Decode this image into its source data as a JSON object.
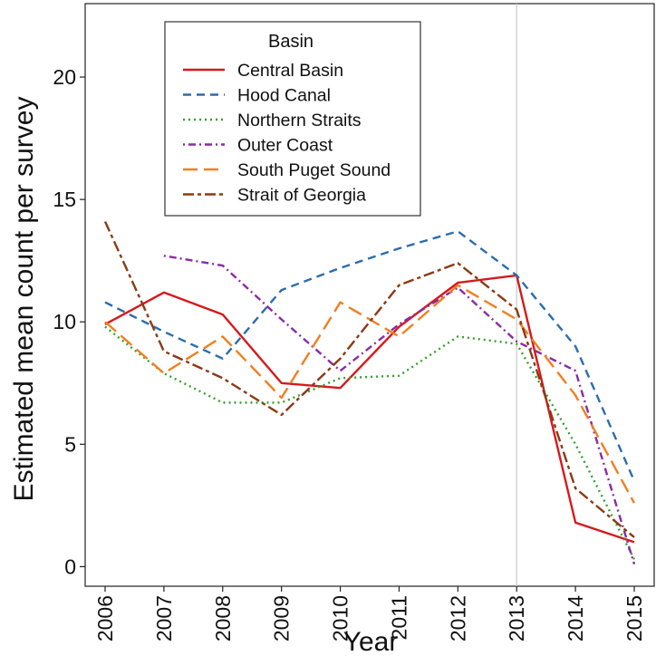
{
  "chart_data": {
    "type": "line",
    "title": "",
    "xlabel": "Year",
    "ylabel": "Estimated mean count per survey",
    "x": [
      2006,
      2007,
      2008,
      2009,
      2010,
      2011,
      2012,
      2013,
      2014,
      2015
    ],
    "x_tick_labels": [
      "2006",
      "2007",
      "2008",
      "2009",
      "2010",
      "2011",
      "2012",
      "2013",
      "2014",
      "2015"
    ],
    "xlim": [
      2006,
      2015
    ],
    "ylim": [
      -0.8,
      23
    ],
    "y_ticks": [
      0,
      5,
      10,
      15,
      20
    ],
    "y_tick_labels": [
      "0",
      "5",
      "10",
      "15",
      "20"
    ],
    "reference_line_x": 2013,
    "grid": false,
    "legend": {
      "title": "Basin",
      "placement": "top-left"
    },
    "series": [
      {
        "name": "Central Basin",
        "color": "#d7191c",
        "dash": "solid",
        "values": [
          9.9,
          11.2,
          10.3,
          7.5,
          7.3,
          9.8,
          11.6,
          11.9,
          1.8,
          1.0
        ]
      },
      {
        "name": "Hood Canal",
        "color": "#2b6cb0",
        "dash": "dashed",
        "values": [
          10.8,
          9.6,
          8.5,
          11.3,
          12.2,
          13.0,
          13.7,
          11.9,
          9.0,
          3.5
        ]
      },
      {
        "name": "Northern Straits",
        "color": "#33a02c",
        "dash": "dotted",
        "values": [
          9.8,
          7.9,
          6.7,
          6.7,
          7.7,
          7.8,
          9.4,
          9.1,
          5.0,
          0.3
        ]
      },
      {
        "name": "Outer Coast",
        "color": "#8b2aa6",
        "dash": "dashdot",
        "values": [
          null,
          12.7,
          12.3,
          10.1,
          8.0,
          9.9,
          11.4,
          9.2,
          8.0,
          0.1
        ]
      },
      {
        "name": "South Puget Sound",
        "color": "#f07f1e",
        "dash": "longdash",
        "values": [
          10.0,
          7.9,
          9.4,
          6.9,
          10.8,
          9.4,
          11.5,
          10.1,
          7.0,
          2.6
        ]
      },
      {
        "name": "Strait of Georgia",
        "color": "#8b3a14",
        "dash": "twodash",
        "values": [
          14.1,
          8.8,
          7.7,
          6.2,
          8.5,
          11.5,
          12.4,
          10.5,
          3.2,
          1.2
        ]
      }
    ]
  }
}
